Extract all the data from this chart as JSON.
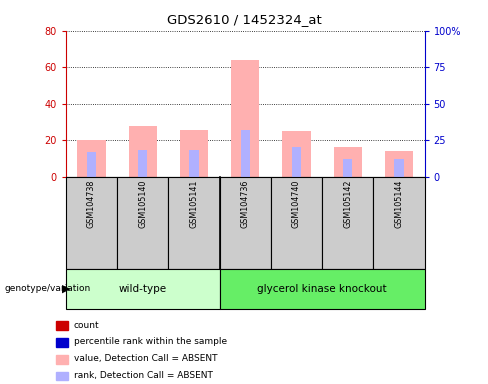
{
  "title": "GDS2610 / 1452324_at",
  "samples": [
    "GSM104738",
    "GSM105140",
    "GSM105141",
    "GSM104736",
    "GSM104740",
    "GSM105142",
    "GSM105144"
  ],
  "group1_indices": [
    0,
    1,
    2
  ],
  "group2_indices": [
    3,
    4,
    5,
    6
  ],
  "group1_label": "wild-type",
  "group2_label": "glycerol kinase knockout",
  "genotype_label": "genotype/variation",
  "value_absent": [
    20.0,
    27.5,
    25.5,
    64.0,
    25.0,
    16.0,
    14.0
  ],
  "rank_absent": [
    13.5,
    14.5,
    14.5,
    25.5,
    16.0,
    9.5,
    9.5
  ],
  "ylim_left": [
    0,
    80
  ],
  "ylim_right": [
    0,
    100
  ],
  "yticks_left": [
    0,
    20,
    40,
    60,
    80
  ],
  "yticks_right": [
    0,
    25,
    50,
    75,
    100
  ],
  "yticklabels_right": [
    "0",
    "25",
    "50",
    "75",
    "100%"
  ],
  "color_count": "#cc0000",
  "color_percentile": "#0000cc",
  "color_value_absent": "#ffb0b0",
  "color_rank_absent": "#b0b0ff",
  "color_group1_bg": "#ccffcc",
  "color_group2_bg": "#66ee66",
  "color_sample_bg": "#cccccc",
  "pink_bar_width": 0.55,
  "blue_bar_width": 0.18,
  "legend_items": [
    {
      "label": "count",
      "color": "#cc0000"
    },
    {
      "label": "percentile rank within the sample",
      "color": "#0000cc"
    },
    {
      "label": "value, Detection Call = ABSENT",
      "color": "#ffb0b0"
    },
    {
      "label": "rank, Detection Call = ABSENT",
      "color": "#b0b0ff"
    }
  ]
}
